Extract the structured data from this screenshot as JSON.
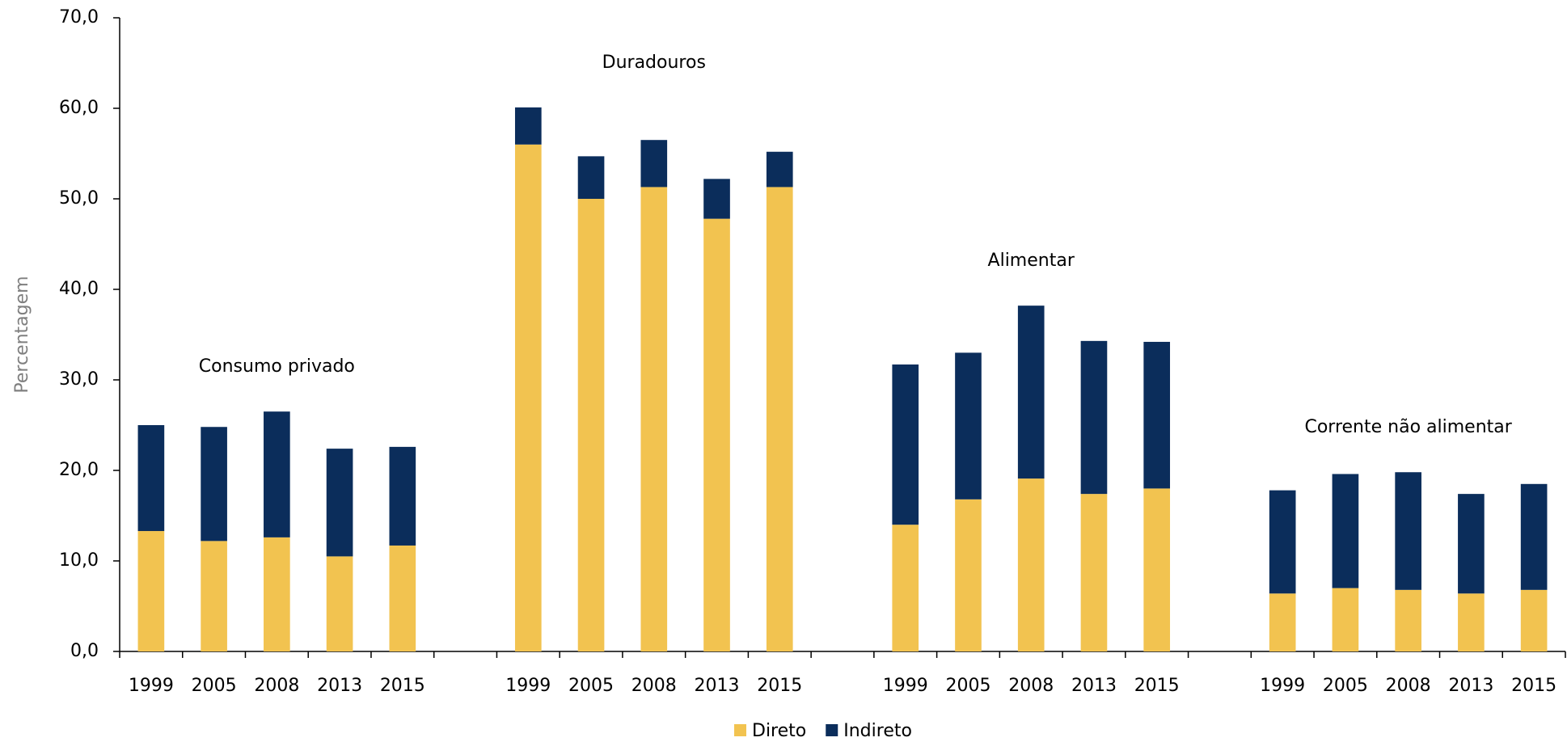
{
  "chart_data": {
    "type": "stacked_bar",
    "y_label": "Percentagem",
    "groups": [
      "Consumo privado",
      "Duradouros",
      "Alimentar",
      "Corrente não alimentar"
    ],
    "categories": [
      "1999",
      "2005",
      "2008",
      "2013",
      "2015",
      "1999",
      "2005",
      "2008",
      "2013",
      "2015",
      "1999",
      "2005",
      "2008",
      "2013",
      "2015",
      "1999",
      "2005",
      "2008",
      "2013",
      "2015"
    ],
    "series": [
      {
        "name": "Direto",
        "color": "#f2c350",
        "values": [
          13.3,
          12.2,
          12.6,
          10.5,
          11.7,
          56.0,
          50.0,
          51.3,
          47.8,
          51.3,
          14.0,
          16.8,
          19.1,
          17.4,
          18.0,
          6.4,
          7.0,
          6.8,
          6.4,
          6.8
        ]
      },
      {
        "name": "Indireto",
        "color": "#0b2d5b",
        "values": [
          11.7,
          12.6,
          13.9,
          11.9,
          10.9,
          4.1,
          4.7,
          5.2,
          4.4,
          3.9,
          17.7,
          16.2,
          19.1,
          16.9,
          16.2,
          11.4,
          12.6,
          13.0,
          11.0,
          11.7
        ]
      }
    ],
    "ylim": [
      0,
      70
    ],
    "yticks": [
      {
        "value": 0,
        "label": "0,0"
      },
      {
        "value": 10,
        "label": "10,0"
      },
      {
        "value": 20,
        "label": "20,0"
      },
      {
        "value": 30,
        "label": "30,0"
      },
      {
        "value": 40,
        "label": "40,0"
      },
      {
        "value": 50,
        "label": "50,0"
      },
      {
        "value": 60,
        "label": "60,0"
      },
      {
        "value": 70,
        "label": "70,0"
      }
    ],
    "legend": "bottom"
  }
}
